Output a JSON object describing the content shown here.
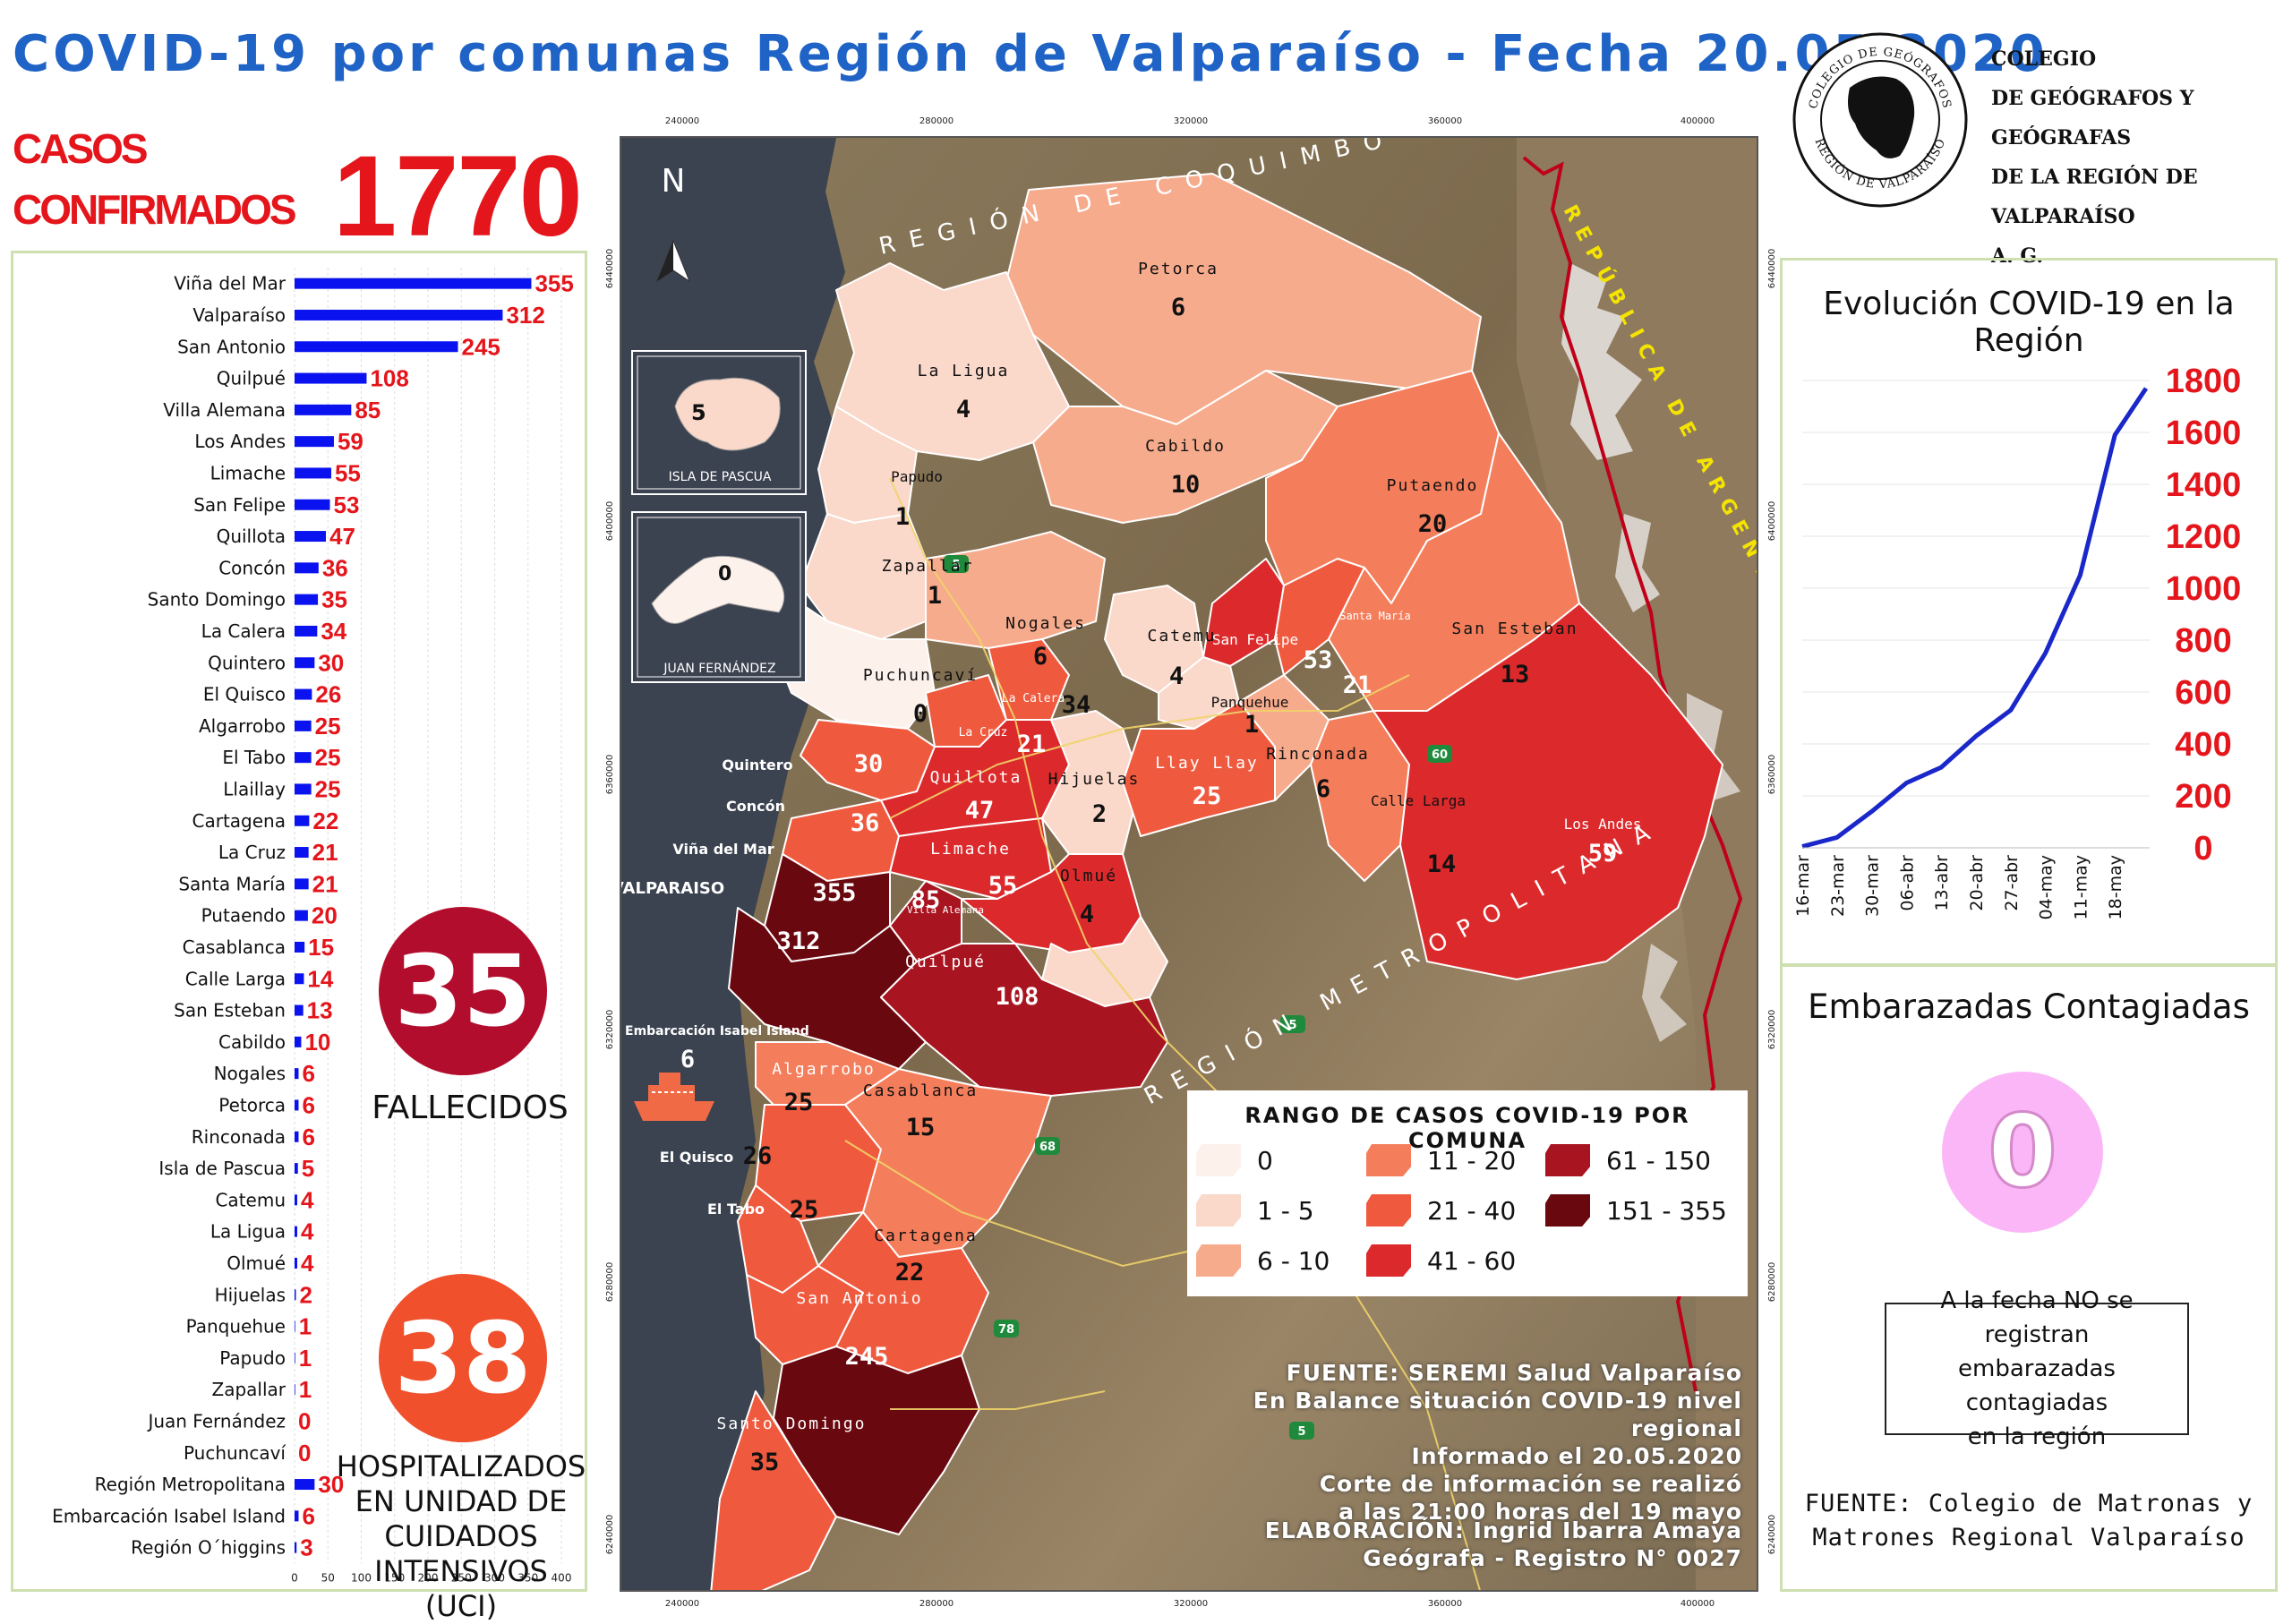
{
  "header": {
    "title": "COVID-19 por comunas Región de Valparaíso - Fecha 20.05.2020",
    "cases_label_line1": "CASOS",
    "cases_label_line2": "CONFIRMADOS",
    "cases_value": "1770"
  },
  "chart_data": [
    {
      "type": "bar",
      "orientation": "horizontal",
      "categories": [
        "Viña del Mar",
        "Valparaíso",
        "San Antonio",
        "Quilpué",
        "Villa Alemana",
        "Los Andes",
        "Limache",
        "San Felipe",
        "Quillota",
        "Concón",
        "Santo Domingo",
        "La Calera",
        "Quintero",
        "El Quisco",
        "Algarrobo",
        "El Tabo",
        "Llaillay",
        "Cartagena",
        "La Cruz",
        "Santa María",
        "Putaendo",
        "Casablanca",
        "Calle Larga",
        "San Esteban",
        "Cabildo",
        "Nogales",
        "Petorca",
        "Rinconada",
        "Isla de Pascua",
        "Catemu",
        "La Ligua",
        "Olmué",
        "Hijuelas",
        "Panquehue",
        "Papudo",
        "Zapallar",
        "Juan Fernández",
        "Puchuncaví",
        "Región Metropolitana",
        "Embarcación Isabel Island",
        "Región O´higgins"
      ],
      "values": [
        355,
        312,
        245,
        108,
        85,
        59,
        55,
        53,
        47,
        36,
        35,
        34,
        30,
        26,
        25,
        25,
        25,
        22,
        21,
        21,
        20,
        15,
        14,
        13,
        10,
        6,
        6,
        6,
        5,
        4,
        4,
        4,
        2,
        1,
        1,
        1,
        0,
        0,
        30,
        6,
        3
      ],
      "xlim": [
        0,
        400
      ],
      "xticks": [
        0,
        50,
        100,
        150,
        200,
        250,
        300,
        350,
        400
      ],
      "bar_color": "#0a12f0",
      "label_color": "#e4151b"
    },
    {
      "type": "line",
      "title": "Evolución COVID-19 en la Región",
      "x": [
        "16-mar",
        "23-mar",
        "30-mar",
        "06-abr",
        "13-abr",
        "20-abr",
        "27-abr",
        "04-may",
        "11-may",
        "18-may"
      ],
      "y": [
        5,
        40,
        140,
        250,
        310,
        430,
        530,
        750,
        1050,
        1590
      ],
      "last_point": {
        "x": "20-may",
        "y": 1770
      },
      "ylim": [
        0,
        1800
      ],
      "yticks": [
        0,
        200,
        400,
        600,
        800,
        1000,
        1200,
        1400,
        1600,
        1800
      ],
      "grid": true,
      "line_color": "#1a27c9"
    }
  ],
  "stats": {
    "deaths_value": "35",
    "deaths_label": "FALLECIDOS",
    "icu_value": "38",
    "icu_label_lines": [
      "HOSPITALIZADOS",
      "EN UNIDAD DE",
      "CUIDADOS",
      "INTENSIVOS",
      "(UCI)"
    ]
  },
  "map": {
    "region_labels": [
      "REGIÓN DE COQUIMBO",
      "REGIÓN METROPOLITANA",
      "REPÚBLICA DE ARGENTINA"
    ],
    "north": "N",
    "coords_x": [
      "240000",
      "280000",
      "320000",
      "360000",
      "400000"
    ],
    "coords_y": [
      "6440000",
      "6400000",
      "6360000",
      "6320000",
      "6280000",
      "6240000"
    ],
    "insets": [
      {
        "name": "ISLA DE PASCUA",
        "value": "5"
      },
      {
        "name": "JUAN FERNÁNDEZ",
        "value": "0"
      }
    ],
    "communes": [
      {
        "name": "Petorca",
        "value": "6"
      },
      {
        "name": "La Ligua",
        "value": "4"
      },
      {
        "name": "Cabildo",
        "value": "10"
      },
      {
        "name": "Papudo",
        "value": "1"
      },
      {
        "name": "Putaendo",
        "value": "20"
      },
      {
        "name": "Zapallar",
        "value": "1"
      },
      {
        "name": "Nogales",
        "value": "6"
      },
      {
        "name": "Catemu",
        "value": "4"
      },
      {
        "name": "San Felipe",
        "value": "53"
      },
      {
        "name": "Santa María",
        "value": "21"
      },
      {
        "name": "San Esteban",
        "value": "13"
      },
      {
        "name": "Puchuncaví",
        "value": "0"
      },
      {
        "name": "La Calera",
        "value": "34"
      },
      {
        "name": "Panquehue",
        "value": "1"
      },
      {
        "name": "La Cruz",
        "value": "21"
      },
      {
        "name": "Quintero",
        "value": "30"
      },
      {
        "name": "Quillota",
        "value": "47"
      },
      {
        "name": "Hijuelas",
        "value": "2"
      },
      {
        "name": "Llay Llay",
        "value": "25"
      },
      {
        "name": "Rinconada",
        "value": "6"
      },
      {
        "name": "Calle Larga",
        "value": "14"
      },
      {
        "name": "Los Andes",
        "value": "59"
      },
      {
        "name": "Concón",
        "value": "36"
      },
      {
        "name": "Limache",
        "value": "55"
      },
      {
        "name": "Viña del Mar",
        "value": "355"
      },
      {
        "name": "Villa Alemana",
        "value": "85"
      },
      {
        "name": "Olmué",
        "value": "4"
      },
      {
        "name": "VALPARAISO",
        "value": "312"
      },
      {
        "name": "Quilpué",
        "value": "108"
      },
      {
        "name": "Embarcación Isabel Island",
        "value": "6"
      },
      {
        "name": "Algarrobo",
        "value": "25"
      },
      {
        "name": "Casablanca",
        "value": "15"
      },
      {
        "name": "El Quisco",
        "value": "26"
      },
      {
        "name": "El Tabo",
        "value": "25"
      },
      {
        "name": "Cartagena",
        "value": "22"
      },
      {
        "name": "San Antonio",
        "value": "245"
      },
      {
        "name": "Santo Domingo",
        "value": "35"
      }
    ],
    "routes": [
      "5",
      "60",
      "68",
      "78",
      "5",
      "5"
    ]
  },
  "legend": {
    "title": "RANGO DE CASOS COVID-19 POR COMUNA",
    "items": [
      {
        "label": "0",
        "color": "#fdf1ec"
      },
      {
        "label": "1 - 5",
        "color": "#fad8ca"
      },
      {
        "label": "6 - 10",
        "color": "#f7ab8d"
      },
      {
        "label": "11 - 20",
        "color": "#f47e5c"
      },
      {
        "label": "21 - 40",
        "color": "#ef5a3f"
      },
      {
        "label": "41 - 60",
        "color": "#dc2a2c"
      },
      {
        "label": "61 - 150",
        "color": "#a81520"
      },
      {
        "label": "151 - 355",
        "color": "#6a0810"
      }
    ]
  },
  "source_map": [
    "FUENTE: SEREMI Salud Valparaíso",
    "En Balance situación COVID-19 nivel regional",
    "Informado el 20.05.2020",
    "Corte de información se realizó",
    "a las 21:00 horas del 19 mayo"
  ],
  "credit_map": [
    "ELABORACIÓN: Ingrid Ibarra Amaya",
    "Geógrafa - Registro N° 0027"
  ],
  "org": {
    "name_lines": [
      "COLEGIO",
      "DE GEÓGRAFOS Y GEÓGRAFAS",
      "DE LA REGIÓN DE VALPARAÍSO",
      "A. G."
    ],
    "seal_top": "COLEGIO DE GEÓGRAFOS",
    "seal_bottom": "REGIÓN DE VALPARAÍSO"
  },
  "pregnant": {
    "title": "Embarazadas Contagiadas",
    "value": "0",
    "note_lines": [
      "A la fecha NO se registran",
      "embarazadas contagiadas",
      "en la región"
    ],
    "source_lines": [
      "FUENTE: Colegio de Matronas y",
      "Matrones Regional Valparaíso"
    ]
  }
}
